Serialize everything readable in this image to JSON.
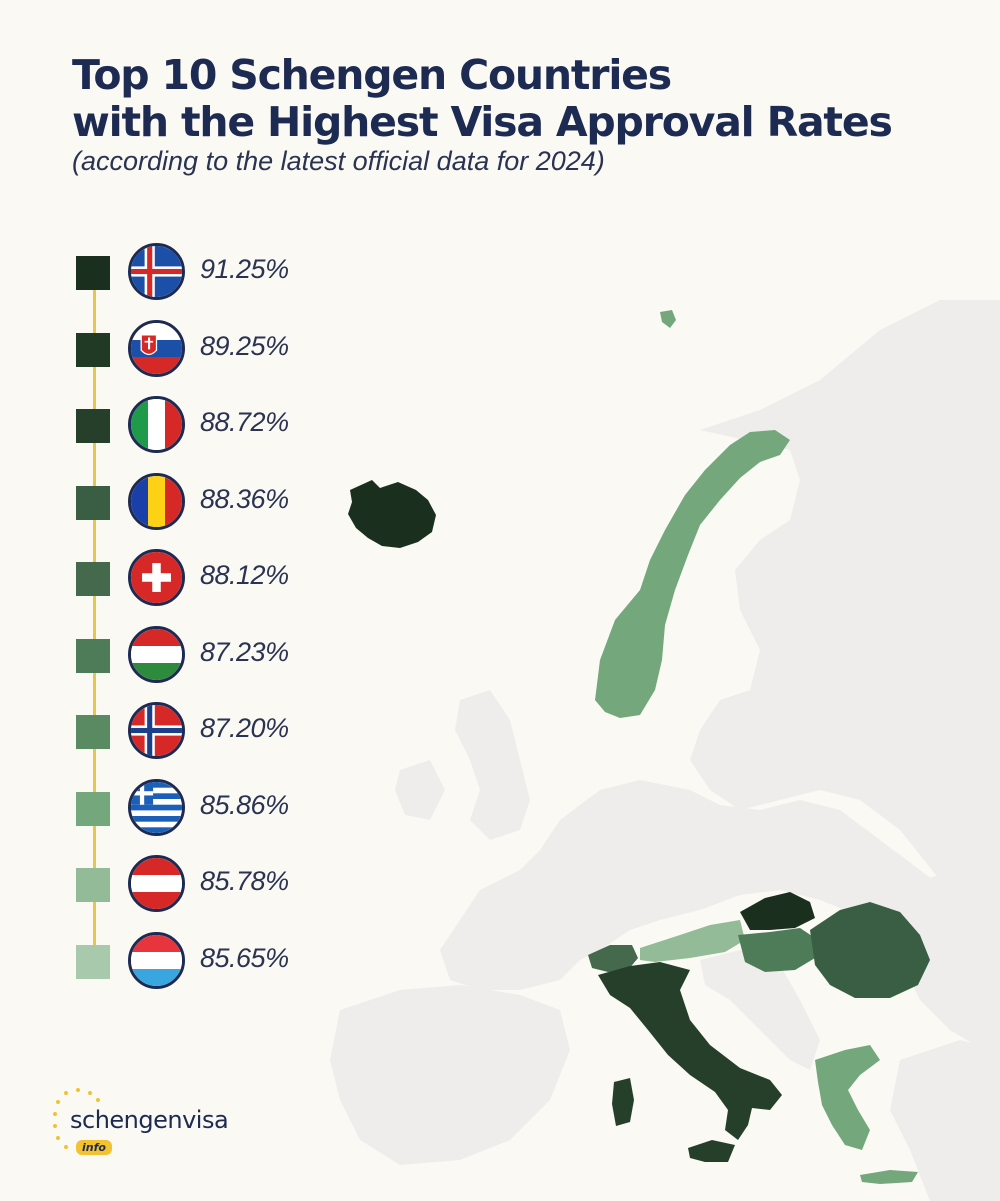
{
  "title_line1": "Top 10 Schengen Countries",
  "title_line2": "with the Highest Visa Approval Rates",
  "subtitle": "(according to the latest official data for 2024)",
  "colors": {
    "background": "#fbf9f3",
    "land_other": "#eeedec",
    "legend_line": "#e8c64a",
    "title": "#1d2a52"
  },
  "legend": [
    {
      "country": "Iceland",
      "flag": "iceland-flag",
      "rate": "91.25%",
      "value": 91.25,
      "color": "#1b2f1f"
    },
    {
      "country": "Slovakia",
      "flag": "slovakia-flag",
      "rate": "89.25%",
      "value": 89.25,
      "color": "#203a25"
    },
    {
      "country": "Italy",
      "flag": "italy-flag",
      "rate": "88.72%",
      "value": 88.72,
      "color": "#263f2b"
    },
    {
      "country": "Romania",
      "flag": "romania-flag",
      "rate": "88.36%",
      "value": 88.36,
      "color": "#3a5e43"
    },
    {
      "country": "Switzerland",
      "flag": "switzerland-flag",
      "rate": "88.12%",
      "value": 88.12,
      "color": "#44694c"
    },
    {
      "country": "Hungary",
      "flag": "hungary-flag",
      "rate": "87.23%",
      "value": 87.23,
      "color": "#4f7c58"
    },
    {
      "country": "Norway",
      "flag": "norway-flag",
      "rate": "87.20%",
      "value": 87.2,
      "color": "#5a8a62"
    },
    {
      "country": "Greece",
      "flag": "greece-flag",
      "rate": "85.86%",
      "value": 85.86,
      "color": "#74a77c"
    },
    {
      "country": "Austria",
      "flag": "austria-flag",
      "rate": "85.78%",
      "value": 85.78,
      "color": "#93bb98"
    },
    {
      "country": "Luxembourg",
      "flag": "luxembourg-flag",
      "rate": "85.65%",
      "value": 85.65,
      "color": "#a9c9ac"
    }
  ],
  "logo": {
    "text": "schengenvisa",
    "badge": "info"
  }
}
